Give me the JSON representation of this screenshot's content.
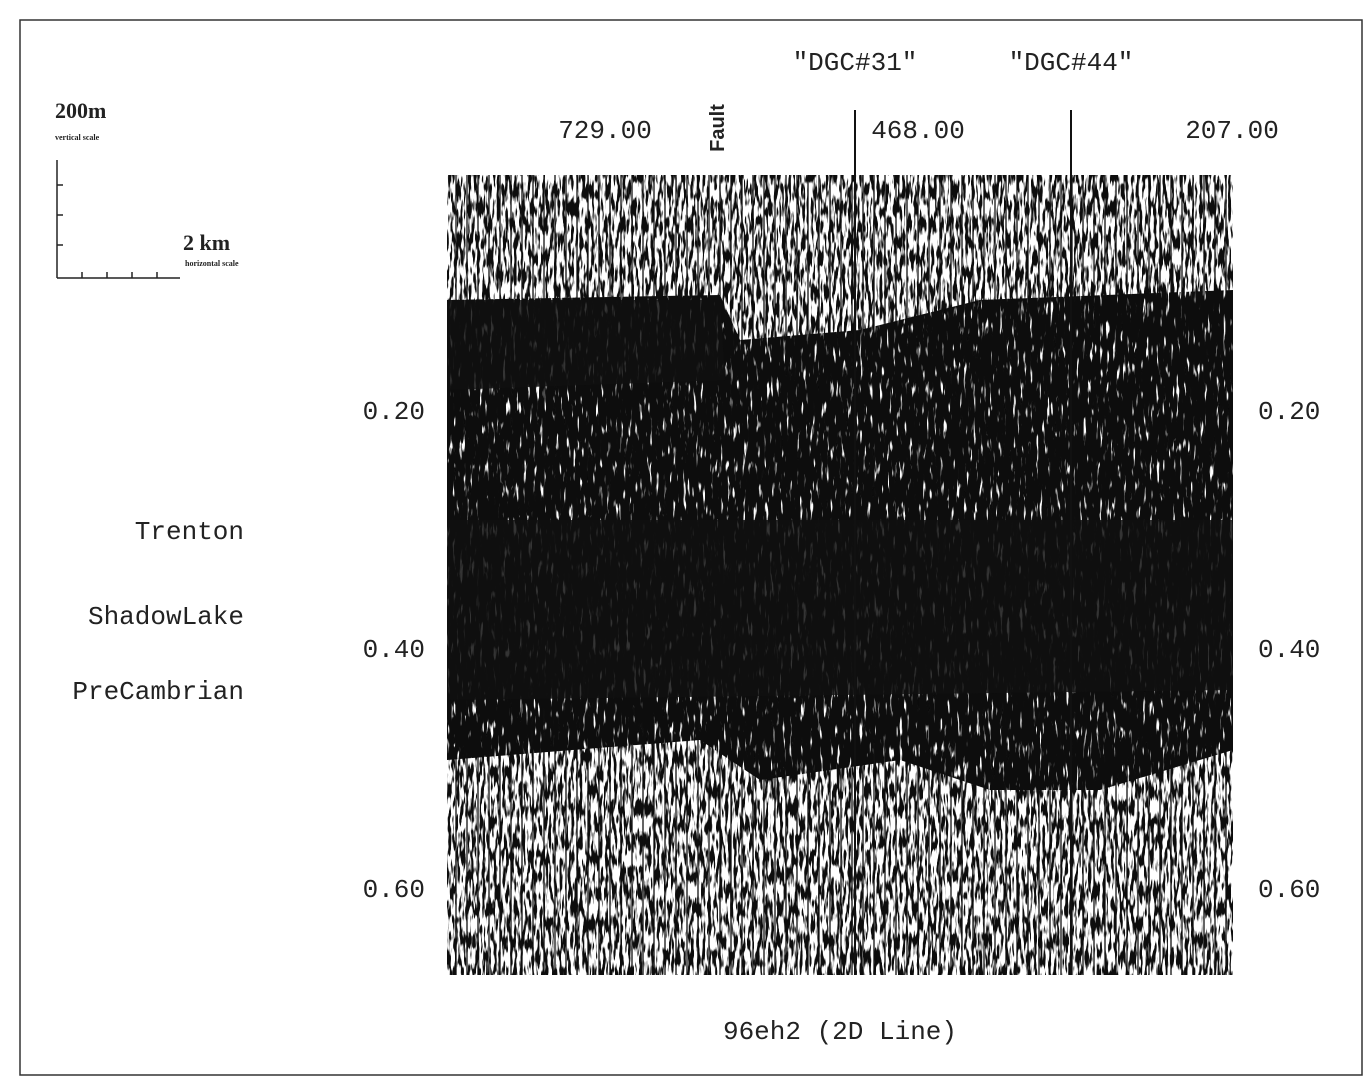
{
  "scale_bar": {
    "vertical": "200m",
    "vertical_caption": "vertical scale",
    "horizontal": "2 km",
    "horizontal_caption": "horizontal scale"
  },
  "wells": [
    "\"DGC#31\"",
    "\"DGC#44\""
  ],
  "fault_label": "Fault",
  "trace_labels": [
    "729.00",
    "468.00",
    "207.00"
  ],
  "time_labels": [
    "0.20",
    "0.40",
    "0.60"
  ],
  "horizons": [
    "Trenton",
    "ShadowLake",
    "PreCambrian"
  ],
  "caption": "96eh2 (2D Line)"
}
